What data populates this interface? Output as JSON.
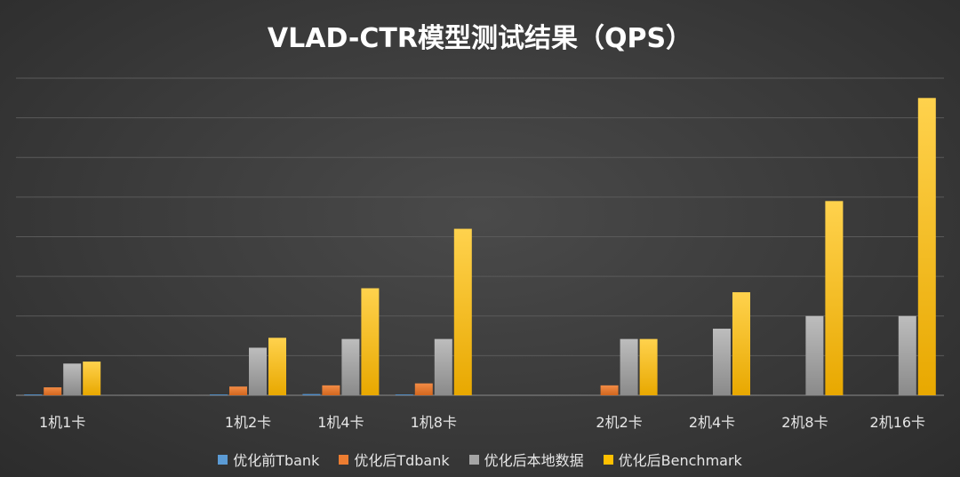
{
  "chart_data": {
    "type": "bar",
    "title": "VLAD-CTR模型测试结果（QPS）",
    "xlabel": "",
    "ylabel": "",
    "categories": [
      "1机1卡",
      "",
      "1机2卡",
      "1机4卡",
      "1机8卡",
      "",
      "2机2卡",
      "2机4卡",
      "2机8卡",
      "2机16卡"
    ],
    "ylim": [
      0,
      8
    ],
    "grid": true,
    "legend_position": "bottom",
    "series": [
      {
        "name": "优化前Tbank",
        "color": "#5b9bd5",
        "values": [
          0.02,
          0,
          0.02,
          0.03,
          0.02,
          0,
          0,
          0,
          0,
          0
        ]
      },
      {
        "name": "优化后Tdbank",
        "color": "#ed7d31",
        "values": [
          0.2,
          0,
          0.22,
          0.25,
          0.3,
          0,
          0.25,
          0,
          0,
          0
        ]
      },
      {
        "name": "优化后本地数据",
        "color": "#a5a5a5",
        "values": [
          0.8,
          0,
          1.2,
          1.42,
          1.42,
          0,
          1.42,
          1.68,
          2.0,
          2.0
        ]
      },
      {
        "name": "优化后Benchmark",
        "color": "#ffc000",
        "values": [
          0.85,
          0,
          1.45,
          2.7,
          4.2,
          0,
          1.42,
          2.6,
          4.9,
          7.5
        ]
      }
    ]
  }
}
